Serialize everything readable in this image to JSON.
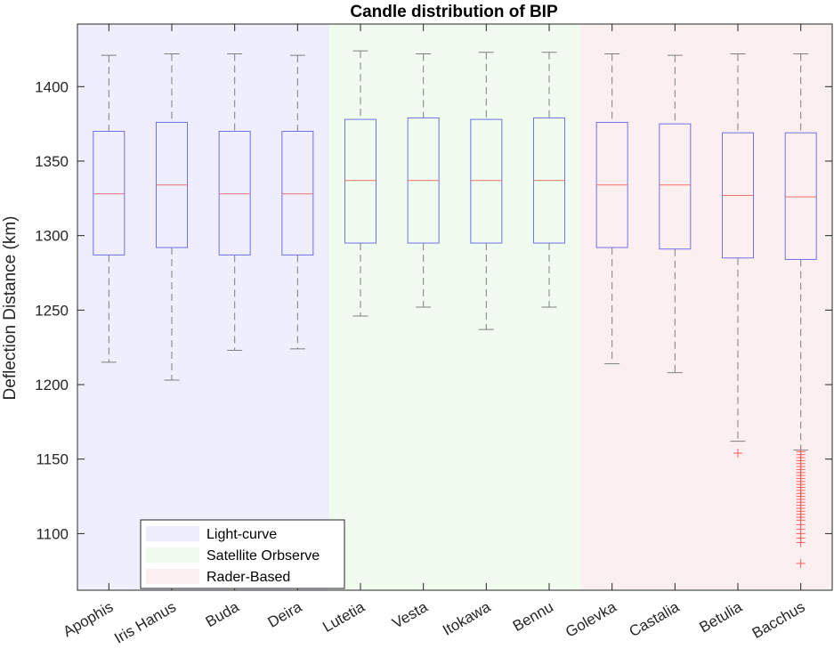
{
  "chart_data": {
    "type": "box",
    "title": "Candle distribution of BIP",
    "xlabel": "",
    "ylabel": "Deflection Distance (km)",
    "ylim": [
      1062,
      1442
    ],
    "yticks": [
      1100,
      1150,
      1200,
      1250,
      1300,
      1350,
      1400
    ],
    "grid": false,
    "legend_position": "bottom-left",
    "categories": [
      "Apophis",
      "Iris Hanus",
      "Buda",
      "Deira",
      "Lutetia",
      "Vesta",
      "Itokawa",
      "Bennu",
      "Golevka",
      "Castalia",
      "Betulia",
      "Bacchus"
    ],
    "groups": [
      {
        "name": "Light-curve",
        "color": "#eeeefc",
        "categories": [
          "Apophis",
          "Iris Hanus",
          "Buda",
          "Deira"
        ]
      },
      {
        "name": "Satellite Orbserve",
        "color": "#effcee",
        "categories": [
          "Lutetia",
          "Vesta",
          "Itokawa",
          "Bennu"
        ]
      },
      {
        "name": "Rader-Based",
        "color": "#fcefef",
        "categories": [
          "Golevka",
          "Castalia",
          "Betulia",
          "Bacchus"
        ]
      }
    ],
    "colors": {
      "box": "#7070f0",
      "median": "#f07070",
      "whisker": "#7f7f7f",
      "outlier": "#ff6060"
    },
    "boxes": [
      {
        "category": "Apophis",
        "whisker_low": 1215,
        "q1": 1287,
        "median": 1328,
        "q3": 1370,
        "whisker_high": 1421,
        "outliers": []
      },
      {
        "category": "Iris Hanus",
        "whisker_low": 1203,
        "q1": 1292,
        "median": 1334,
        "q3": 1376,
        "whisker_high": 1422,
        "outliers": []
      },
      {
        "category": "Buda",
        "whisker_low": 1223,
        "q1": 1287,
        "median": 1328,
        "q3": 1370,
        "whisker_high": 1422,
        "outliers": []
      },
      {
        "category": "Deira",
        "whisker_low": 1224,
        "q1": 1287,
        "median": 1328,
        "q3": 1370,
        "whisker_high": 1421,
        "outliers": []
      },
      {
        "category": "Lutetia",
        "whisker_low": 1246,
        "q1": 1295,
        "median": 1337,
        "q3": 1378,
        "whisker_high": 1424,
        "outliers": []
      },
      {
        "category": "Vesta",
        "whisker_low": 1252,
        "q1": 1295,
        "median": 1337,
        "q3": 1379,
        "whisker_high": 1422,
        "outliers": []
      },
      {
        "category": "Itokawa",
        "whisker_low": 1237,
        "q1": 1295,
        "median": 1337,
        "q3": 1378,
        "whisker_high": 1423,
        "outliers": []
      },
      {
        "category": "Bennu",
        "whisker_low": 1252,
        "q1": 1295,
        "median": 1337,
        "q3": 1379,
        "whisker_high": 1423,
        "outliers": []
      },
      {
        "category": "Golevka",
        "whisker_low": 1214,
        "q1": 1292,
        "median": 1334,
        "q3": 1376,
        "whisker_high": 1422,
        "outliers": []
      },
      {
        "category": "Castalia",
        "whisker_low": 1208,
        "q1": 1291,
        "median": 1334,
        "q3": 1375,
        "whisker_high": 1421,
        "outliers": []
      },
      {
        "category": "Betulia",
        "whisker_low": 1162,
        "q1": 1285,
        "median": 1327,
        "q3": 1369,
        "whisker_high": 1422,
        "outliers": [
          1154
        ]
      },
      {
        "category": "Bacchus",
        "whisker_low": 1156,
        "q1": 1284,
        "median": 1326,
        "q3": 1369,
        "whisker_high": 1422,
        "outliers": [
          1155,
          1153,
          1151,
          1149,
          1147,
          1145,
          1143,
          1141,
          1139,
          1137,
          1135,
          1133,
          1131,
          1129,
          1127,
          1125,
          1123,
          1121,
          1119,
          1117,
          1115,
          1113,
          1111,
          1109,
          1106,
          1103,
          1100,
          1097,
          1094,
          1080
        ]
      }
    ]
  }
}
